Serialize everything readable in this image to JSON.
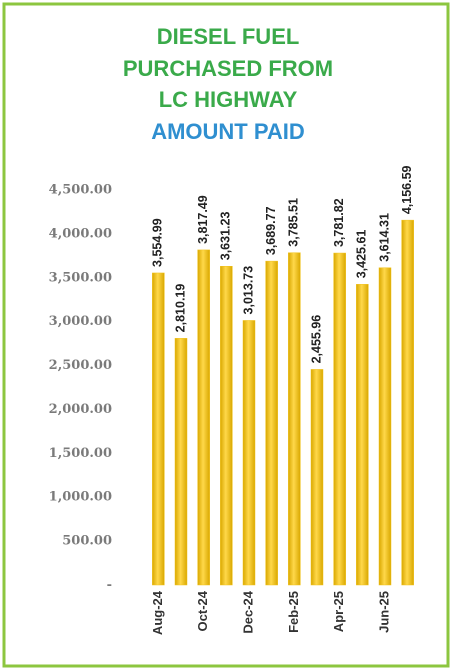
{
  "chart_data": {
    "type": "bar",
    "title": [
      "DIESEL FUEL",
      "PURCHASED FROM",
      "LC HIGHWAY"
    ],
    "subtitle": "AMOUNT PAID",
    "categories": [
      "Aug-24",
      null,
      "Oct-24",
      null,
      "Dec-24",
      null,
      "Feb-25",
      null,
      "Apr-25",
      null,
      "Jun-25",
      null
    ],
    "values": [
      3554.99,
      2810.19,
      3817.49,
      3631.23,
      3013.73,
      3689.77,
      3785.51,
      2455.96,
      3781.82,
      3425.61,
      3614.31,
      4156.59
    ],
    "value_labels": [
      "3,554.99",
      "2,810.19",
      "3,817.49",
      "3,631.23",
      "3,013.73",
      "3,689.77",
      "3,785.51",
      "2,455.96",
      "3,781.82",
      "3,425.61",
      "3,614.31",
      "4,156.59"
    ],
    "color": "#f2c21b",
    "ylim": [
      0,
      4500
    ],
    "yticks": [
      {
        "value": 0,
        "label": "-"
      },
      {
        "value": 500,
        "label": "500.00"
      },
      {
        "value": 1000,
        "label": "1,000.00"
      },
      {
        "value": 1500,
        "label": "1,500.00"
      },
      {
        "value": 2000,
        "label": "2,000.00"
      },
      {
        "value": 2500,
        "label": "2,500.00"
      },
      {
        "value": 3000,
        "label": "3,000.00"
      },
      {
        "value": 3500,
        "label": "3,500.00"
      },
      {
        "value": 4000,
        "label": "4,000.00"
      },
      {
        "value": 4500,
        "label": "4,500.00"
      }
    ],
    "grid": false
  }
}
